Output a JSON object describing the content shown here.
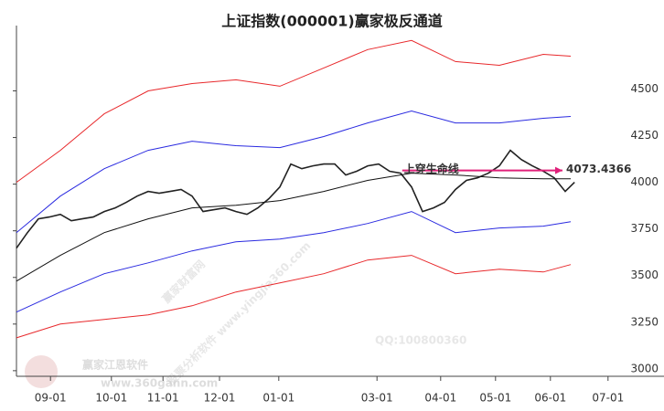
{
  "chart_data": {
    "type": "line",
    "title": "上证指数(000001)赢家极反通道",
    "xlim": [
      0,
      113
    ],
    "xticks": [
      {
        "value": 6.2,
        "label": "09-01"
      },
      {
        "value": 17.3,
        "label": "10-01"
      },
      {
        "value": 26.7,
        "label": "11-01"
      },
      {
        "value": 37,
        "label": "12-01"
      },
      {
        "value": 47.8,
        "label": "01-01"
      },
      {
        "value": 65.7,
        "label": "03-01"
      },
      {
        "value": 77.3,
        "label": "04-01"
      },
      {
        "value": 87.3,
        "label": "05-01"
      },
      {
        "value": 97.3,
        "label": "06-01"
      },
      {
        "value": 107.8,
        "label": "07-01"
      }
    ],
    "ylim": [
      2970,
      4850
    ],
    "yticks": [
      3000,
      3250,
      3500,
      3750,
      4000,
      4250,
      4500
    ],
    "series": [
      {
        "color": "#222222",
        "x": [
          0,
          2,
          4,
          6,
          8,
          10,
          12,
          14,
          16,
          18,
          20,
          22,
          24,
          26,
          28,
          30,
          32,
          34,
          36,
          38,
          40,
          42,
          44,
          46,
          48,
          50,
          52,
          54,
          56,
          58,
          60,
          62,
          64,
          66,
          68,
          70,
          72,
          74,
          76,
          78,
          80,
          82,
          84,
          86,
          88,
          90,
          92,
          94,
          96,
          98,
          100,
          101.7
        ],
        "values": [
          3657,
          3740,
          3814,
          3824,
          3838,
          3804,
          3814,
          3824,
          3853,
          3873,
          3902,
          3936,
          3961,
          3951,
          3961,
          3971,
          3936,
          3853,
          3863,
          3873,
          3853,
          3838,
          3873,
          3922,
          3985,
          4108,
          4083,
          4098,
          4108,
          4108,
          4049,
          4069,
          4098,
          4108,
          4069,
          4059,
          3985,
          3853,
          3873,
          3902,
          3971,
          4020,
          4034,
          4059,
          4098,
          4181,
          4132,
          4098,
          4069,
          4034,
          3961,
          4010
        ]
      },
      {
        "color": "#e8282b",
        "x": [
          0,
          8,
          16,
          24,
          32,
          40,
          48,
          56,
          64,
          72,
          80,
          88,
          96,
          101
        ],
        "values": [
          4010,
          4181,
          4377,
          4500,
          4539,
          4559,
          4525,
          4623,
          4721,
          4770,
          4657,
          4637,
          4696,
          4686
        ]
      },
      {
        "color": "#2a2ae0",
        "x": [
          0,
          8,
          16,
          24,
          32,
          40,
          48,
          56,
          64,
          72,
          80,
          88,
          96,
          101
        ],
        "values": [
          3740,
          3936,
          4083,
          4181,
          4230,
          4206,
          4196,
          4255,
          4328,
          4392,
          4328,
          4328,
          4353,
          4363
        ]
      },
      {
        "color": "#111111",
        "x": [
          0,
          8,
          16,
          24,
          32,
          40,
          48,
          56,
          64,
          72,
          80,
          88,
          96,
          101
        ],
        "values": [
          3480,
          3618,
          3740,
          3814,
          3873,
          3887,
          3912,
          3961,
          4020,
          4059,
          4049,
          4034,
          4029,
          4029
        ]
      },
      {
        "color": "#2a2ae0",
        "x": [
          0,
          8,
          16,
          24,
          32,
          40,
          48,
          56,
          64,
          72,
          80,
          88,
          96,
          101
        ],
        "values": [
          3314,
          3422,
          3520,
          3578,
          3642,
          3691,
          3706,
          3740,
          3789,
          3853,
          3740,
          3765,
          3775,
          3799
        ]
      },
      {
        "color": "#e8282b",
        "x": [
          0,
          8,
          16,
          24,
          32,
          40,
          48,
          56,
          64,
          72,
          80,
          88,
          96,
          101
        ],
        "values": [
          3176,
          3250,
          3275,
          3299,
          3348,
          3422,
          3471,
          3520,
          3593,
          3618,
          3520,
          3544,
          3529,
          3569
        ]
      }
    ],
    "annotation": {
      "text": "上穿生命线",
      "value": 4073.4366,
      "x_start": 70.3,
      "x_end": 99.5,
      "color": "#e0207a"
    },
    "watermarks": [
      "赢家财富网",
      "股票分析软件 www.yingjia360.com",
      "QQ:100800360",
      "赢家江恩软件",
      "www.360gann.com"
    ]
  }
}
